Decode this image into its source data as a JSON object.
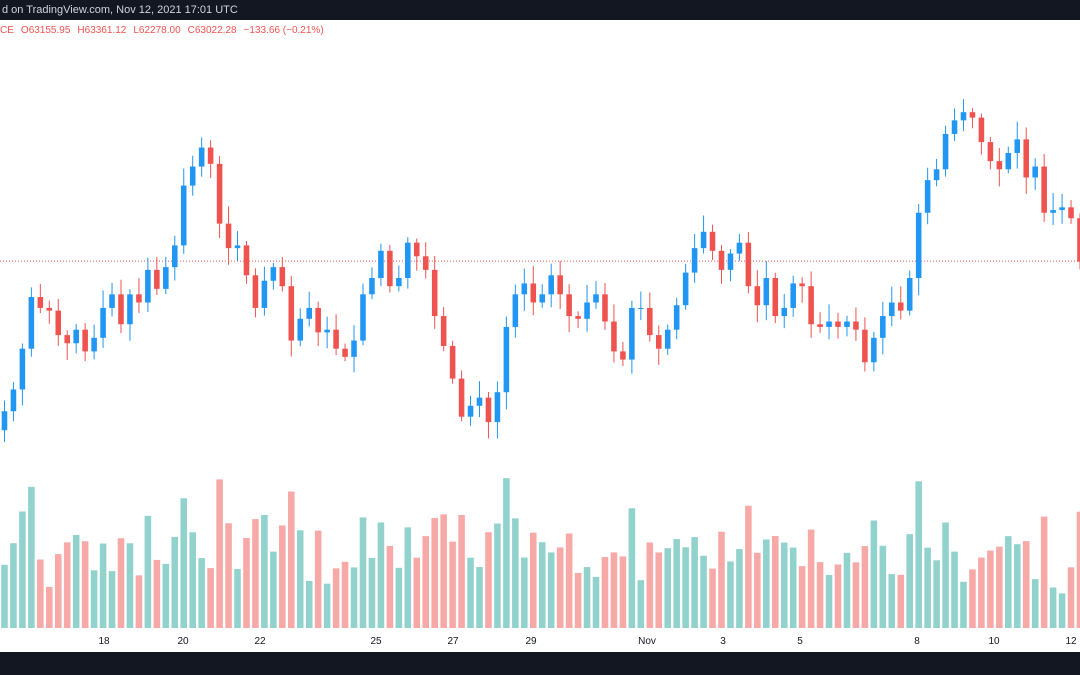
{
  "header": {
    "published_text": "d on TradingView.com, Nov 12, 2021 17:01 UTC"
  },
  "ohlc": {
    "prefix": "CE",
    "o_label": "O",
    "o_value": "63155.95",
    "h_label": "H",
    "h_value": "63361.12",
    "l_label": "L",
    "l_value": "62278.00",
    "c_label": "C",
    "c_value": "63022.28",
    "change": "−133.66 (−0.21%)"
  },
  "colors": {
    "up": "#2196f3",
    "down": "#ef5350",
    "volume_up": "#92d2cc",
    "volume_down": "#f7a9a7",
    "last_price_line": "#ef5350",
    "background": "#ffffff",
    "frame": "#131722"
  },
  "chart_data": {
    "type": "candlestick",
    "interval": "4h",
    "x_tick_labels": [
      "18",
      "20",
      "22",
      "25",
      "27",
      "29",
      "Nov",
      "3",
      "5",
      "8",
      "10",
      "12"
    ],
    "y_axis_labels_visible": false,
    "last_price": 63022.28,
    "grid": false,
    "candles_approx_close": [
      57500,
      58300,
      59800,
      61700,
      61300,
      61200,
      60300,
      60000,
      60500,
      59700,
      60200,
      61300,
      61800,
      60700,
      61800,
      61500,
      62700,
      62000,
      62800,
      63600,
      65800,
      66500,
      67200,
      66600,
      64400,
      63500,
      63600,
      62500,
      61300,
      62300,
      62800,
      62100,
      60100,
      60900,
      61300,
      60400,
      60500,
      59800,
      59500,
      60100,
      61800,
      62400,
      63400,
      62100,
      62400,
      63700,
      63200,
      62700,
      61000,
      59900,
      58700,
      57300,
      57700,
      58000,
      57100,
      58200,
      60600,
      61800,
      62200,
      61500,
      61800,
      62500,
      61800,
      61000,
      60900,
      61500,
      61800,
      60800,
      59700,
      59400,
      61300,
      61300,
      60300,
      59800,
      60500,
      61400,
      62600,
      63500,
      64100,
      63400,
      62700,
      63300,
      63700,
      62100,
      61400,
      62400,
      61000,
      61300,
      62200,
      62100,
      60700,
      60600,
      60800,
      60600,
      60800,
      60500,
      59300,
      60200,
      61000,
      61500,
      61200,
      62400,
      64800,
      66000,
      66400,
      67700,
      68200,
      68500,
      68300,
      67400,
      66700,
      66400,
      67000,
      67500,
      66100,
      66500,
      64800,
      64900,
      65000,
      64600,
      63000
    ]
  }
}
